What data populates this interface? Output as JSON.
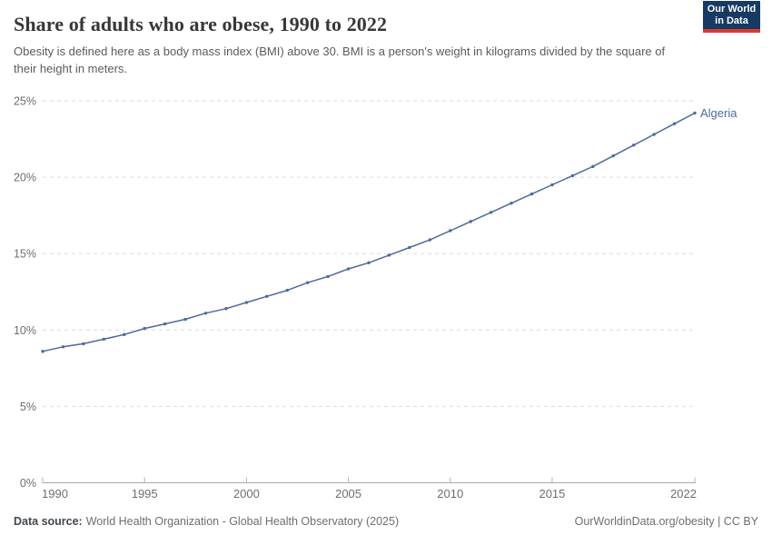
{
  "header": {
    "title": "Share of adults who are obese, 1990 to 2022",
    "subtitle": "Obesity is defined here as a body mass index (BMI) above 30. BMI is a person's weight in kilograms divided by the square of their height in meters.",
    "logo": {
      "line1": "Our World",
      "line2": "in Data",
      "bg_color": "#173a63",
      "accent_color": "#e0382c"
    }
  },
  "chart_data": {
    "type": "line",
    "title": "Share of adults who are obese, 1990 to 2022",
    "xlabel": "",
    "ylabel": "",
    "xlim": [
      1990,
      2022
    ],
    "ylim": [
      0,
      25
    ],
    "grid": "horizontal-dashed",
    "legend_position": "end-of-line-label",
    "x": [
      1990,
      1991,
      1992,
      1993,
      1994,
      1995,
      1996,
      1997,
      1998,
      1999,
      2000,
      2001,
      2002,
      2003,
      2004,
      2005,
      2006,
      2007,
      2008,
      2009,
      2010,
      2011,
      2012,
      2013,
      2014,
      2015,
      2016,
      2017,
      2018,
      2019,
      2020,
      2021,
      2022
    ],
    "series": [
      {
        "name": "Algeria",
        "color": "#4c6a9c",
        "values": [
          8.6,
          8.9,
          9.1,
          9.4,
          9.7,
          10.1,
          10.4,
          10.7,
          11.1,
          11.4,
          11.8,
          12.2,
          12.6,
          13.1,
          13.5,
          14.0,
          14.4,
          14.9,
          15.4,
          15.9,
          16.5,
          17.1,
          17.7,
          18.3,
          18.9,
          19.5,
          20.1,
          20.7,
          21.4,
          22.1,
          22.8,
          23.5,
          24.2
        ]
      }
    ],
    "x_tick_values": [
      1990,
      1995,
      2000,
      2005,
      2010,
      2015,
      2022
    ],
    "x_tick_labels": [
      "1990",
      "1995",
      "2000",
      "2005",
      "2010",
      "2015",
      "2022"
    ],
    "y_tick_values": [
      0,
      5,
      10,
      15,
      20,
      25
    ],
    "y_tick_labels": [
      "0%",
      "5%",
      "10%",
      "15%",
      "20%",
      "25%"
    ],
    "colors": {
      "line": "#4c6a9c",
      "gridline": "#dcdcdc",
      "axis": "#a9a9a9",
      "tick": "#b3b3b3",
      "tick_text": "#6e6e6e"
    }
  },
  "footer": {
    "datasource_label": "Data source:",
    "datasource_value": "World Health Organization - Global Health Observatory (2025)",
    "credit": "OurWorldinData.org/obesity | CC BY"
  }
}
